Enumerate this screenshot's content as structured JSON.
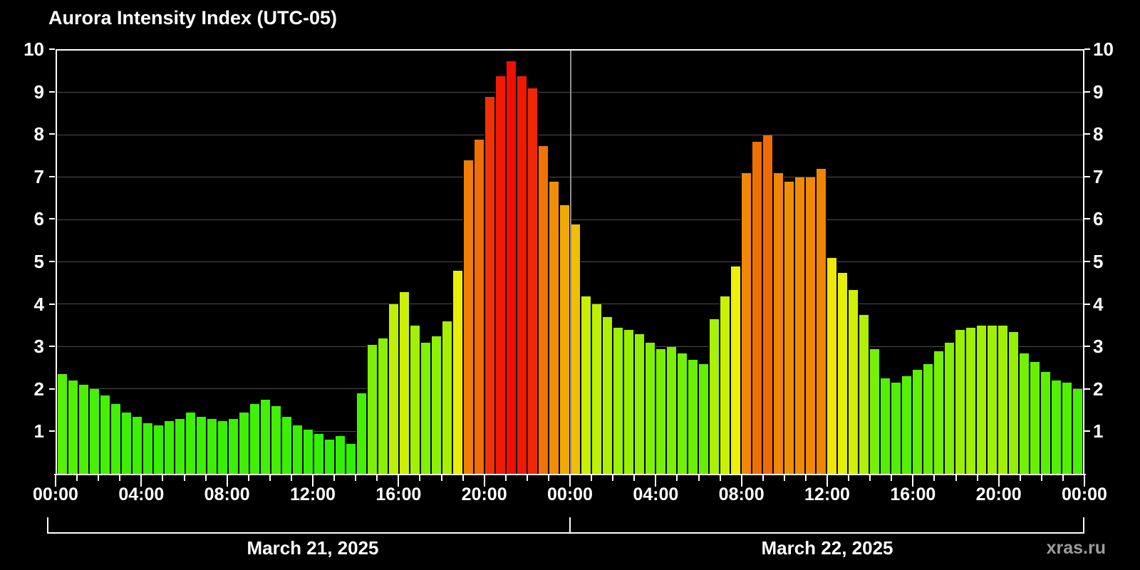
{
  "title": "Aurora Intensity Index (UTC-05)",
  "watermark": "xras.ru",
  "colors": {
    "background": "#000000",
    "axis": "#ffffff",
    "grid": "#4d4d4d",
    "day_divider": "#8f8f8f",
    "text": "#ffffff",
    "watermark_text": "#9c9c9c",
    "scale_anchors_value_hue": [
      [
        0,
        113
      ],
      [
        1,
        108
      ],
      [
        2,
        103
      ],
      [
        2.5,
        97
      ],
      [
        3,
        90
      ],
      [
        3.5,
        80
      ],
      [
        4,
        73
      ],
      [
        4.5,
        66
      ],
      [
        5,
        59
      ],
      [
        5.5,
        52
      ],
      [
        6,
        46
      ],
      [
        6.5,
        40
      ],
      [
        7,
        34
      ],
      [
        7.5,
        30
      ],
      [
        8,
        26
      ],
      [
        8.5,
        18
      ],
      [
        9,
        10
      ],
      [
        9.5,
        4
      ],
      [
        10,
        1
      ]
    ],
    "scale_saturation_pct": 96,
    "scale_lightness_pct": 48
  },
  "chart_data": {
    "type": "bar",
    "title": "Aurora Intensity Index (UTC-05)",
    "interval_minutes": 30,
    "hours_total": 48,
    "ylim": [
      0,
      10
    ],
    "yticks": [
      1,
      2,
      3,
      4,
      5,
      6,
      7,
      8,
      9,
      10
    ],
    "grid": "horizontal gray lines at integer levels; vertical gray divider at hour 24",
    "day_divider_hours": [
      24
    ],
    "xticks": [
      {
        "hour": 0,
        "label": "00:00"
      },
      {
        "hour": 4,
        "label": "04:00"
      },
      {
        "hour": 8,
        "label": "08:00"
      },
      {
        "hour": 12,
        "label": "12:00"
      },
      {
        "hour": 16,
        "label": "16:00"
      },
      {
        "hour": 20,
        "label": "20:00"
      },
      {
        "hour": 24,
        "label": "00:00"
      },
      {
        "hour": 28,
        "label": "04:00"
      },
      {
        "hour": 32,
        "label": "08:00"
      },
      {
        "hour": 36,
        "label": "12:00"
      },
      {
        "hour": 40,
        "label": "16:00"
      },
      {
        "hour": 44,
        "label": "20:00"
      },
      {
        "hour": 48,
        "label": "00:00"
      }
    ],
    "minor_tick_every_hours": 1,
    "day_labels": [
      "March 21, 2025",
      "March 22, 2025"
    ],
    "values": [
      2.35,
      2.2,
      2.1,
      2.0,
      1.85,
      1.65,
      1.45,
      1.35,
      1.2,
      1.15,
      1.25,
      1.3,
      1.45,
      1.35,
      1.3,
      1.25,
      1.3,
      1.45,
      1.65,
      1.75,
      1.6,
      1.35,
      1.15,
      1.05,
      0.95,
      0.8,
      0.9,
      0.7,
      1.9,
      3.05,
      3.2,
      4.0,
      4.3,
      3.5,
      3.1,
      3.25,
      3.6,
      4.8,
      7.4,
      7.9,
      8.9,
      9.4,
      9.75,
      9.4,
      9.1,
      7.75,
      6.9,
      6.35,
      5.9,
      4.2,
      4.0,
      3.7,
      3.45,
      3.4,
      3.3,
      3.1,
      2.95,
      3.0,
      2.85,
      2.7,
      2.6,
      3.65,
      4.2,
      4.9,
      7.1,
      7.85,
      8.0,
      7.1,
      6.9,
      7.0,
      7.0,
      7.2,
      5.1,
      4.75,
      4.35,
      3.75,
      2.95,
      2.25,
      2.15,
      2.3,
      2.45,
      2.6,
      2.9,
      3.1,
      3.4,
      3.45,
      3.5,
      3.5,
      3.5,
      3.35,
      2.85,
      2.65,
      2.4,
      2.2,
      2.15,
      2.0
    ]
  }
}
